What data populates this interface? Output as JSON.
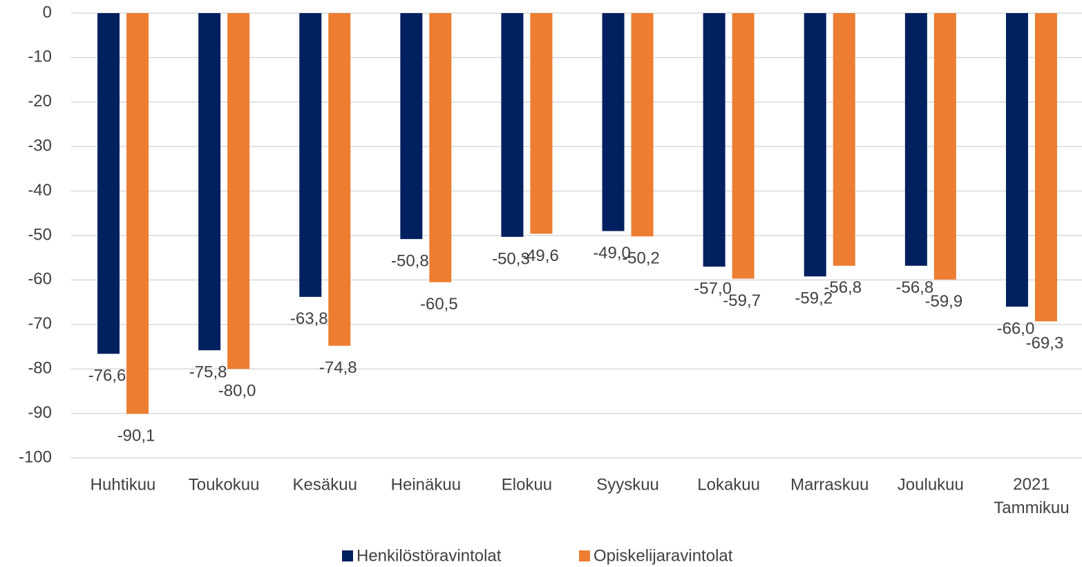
{
  "chart_data": {
    "type": "bar",
    "categories": [
      "Huhtikuu",
      "Toukokuu",
      "Kesäkuu",
      "Heinäkuu",
      "Elokuu",
      "Syyskuu",
      "Lokakuu",
      "Marraskuu",
      "Joulukuu",
      "2021\nTammikuu"
    ],
    "series": [
      {
        "name": "Henkilöstöravintolat",
        "color": "#002060",
        "values": [
          -76.6,
          -75.8,
          -63.8,
          -50.8,
          -50.3,
          -49.0,
          -57.0,
          -59.2,
          -56.8,
          -66.0
        ],
        "value_labels": [
          "-76,6",
          "-75,8",
          "-63,8",
          "-50,8",
          "-50,3",
          "-49,0",
          "-57,0",
          "-59,2",
          "-56,8",
          "-66,0"
        ]
      },
      {
        "name": "Opiskelijaravintolat",
        "color": "#ED7D31",
        "values": [
          -90.1,
          -80.0,
          -74.8,
          -60.5,
          -49.6,
          -50.2,
          -59.7,
          -56.8,
          -59.9,
          -69.3
        ],
        "value_labels": [
          "-90,1",
          "-80,0",
          "-74,8",
          "-60,5",
          "-49,6",
          "-50,2",
          "-59,7",
          "-56,8",
          "-59,9",
          "-69,3"
        ]
      }
    ],
    "ylim": [
      -100,
      0
    ],
    "yticks": [
      0,
      -10,
      -20,
      -30,
      -40,
      -50,
      -60,
      -70,
      -80,
      -90,
      -100
    ],
    "grid": true,
    "legend": "bottom"
  }
}
